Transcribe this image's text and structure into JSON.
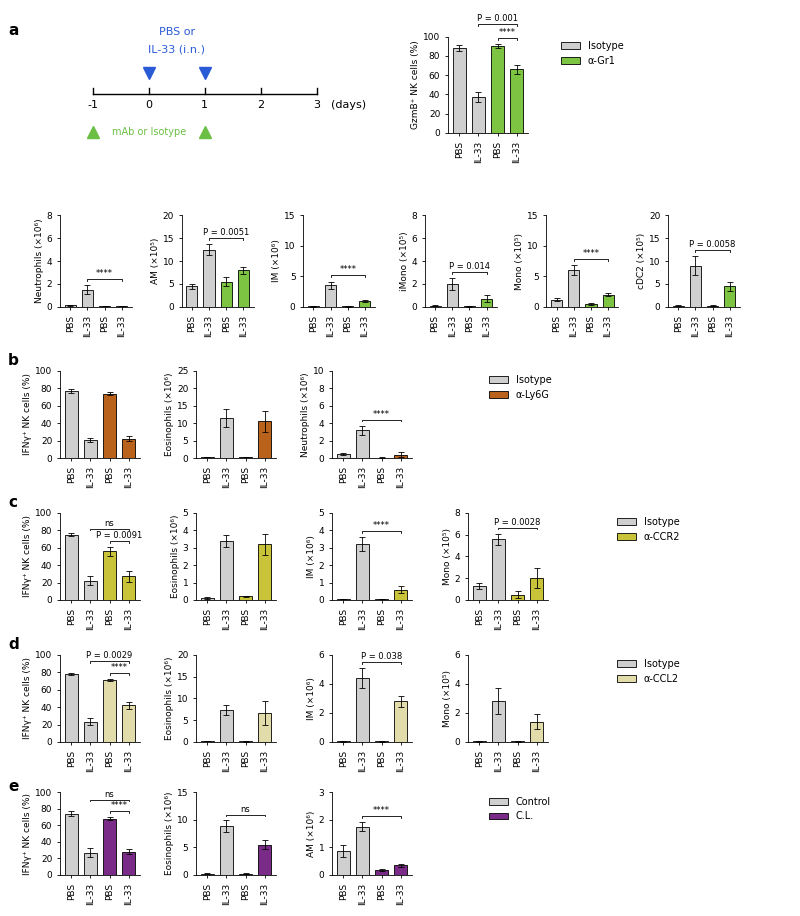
{
  "chart_data": [
    {
      "type": "bar",
      "panel": "a",
      "ylabel": "GzmB⁺ NK cells (%)",
      "categories": [
        "PBS",
        "IL-33",
        "PBS",
        "IL-33"
      ],
      "values": [
        88,
        37,
        90,
        66
      ],
      "errors": [
        3,
        5,
        2,
        5
      ],
      "colors": [
        "#cfcfcf",
        "#cfcfcf",
        "#7cc442",
        "#7cc442"
      ],
      "ylim": [
        0,
        100
      ],
      "yticks": [
        0,
        20,
        40,
        60,
        80,
        100
      ],
      "annotations": [
        {
          "text": "****",
          "between": [
            2,
            3
          ]
        },
        {
          "text": "P = 0.001",
          "between": [
            1,
            3
          ]
        }
      ]
    },
    {
      "type": "bar",
      "panel": "a",
      "ylabel": "Neutrophils (×10⁶)",
      "categories": [
        "PBS",
        "IL-33",
        "PBS",
        "IL-33"
      ],
      "values": [
        0.15,
        1.5,
        0.05,
        0.05
      ],
      "errors": [
        0.05,
        0.4,
        0.01,
        0.01
      ],
      "colors": [
        "#cfcfcf",
        "#cfcfcf",
        "#7cc442",
        "#7cc442"
      ],
      "ylim": [
        0,
        8
      ],
      "yticks": [
        0,
        2,
        4,
        6,
        8
      ],
      "annotations": [
        {
          "text": "****",
          "between": [
            1,
            3
          ]
        }
      ]
    },
    {
      "type": "bar",
      "panel": "a",
      "ylabel": "AM (×10⁵)",
      "categories": [
        "PBS",
        "IL-33",
        "PBS",
        "IL-33"
      ],
      "values": [
        4.5,
        12.5,
        5.5,
        8
      ],
      "errors": [
        0.5,
        1.2,
        1,
        0.8
      ],
      "colors": [
        "#cfcfcf",
        "#cfcfcf",
        "#7cc442",
        "#7cc442"
      ],
      "ylim": [
        0,
        20
      ],
      "yticks": [
        0,
        5,
        10,
        15,
        20
      ],
      "annotations": [
        {
          "text": "P = 0.0051",
          "between": [
            1,
            3
          ]
        }
      ]
    },
    {
      "type": "bar",
      "panel": "a",
      "ylabel": "IM (×10⁶)",
      "categories": [
        "PBS",
        "IL-33",
        "PBS",
        "IL-33"
      ],
      "values": [
        0.1,
        3.5,
        0.1,
        1
      ],
      "errors": [
        0.05,
        0.6,
        0.05,
        0.2
      ],
      "colors": [
        "#cfcfcf",
        "#cfcfcf",
        "#7cc442",
        "#7cc442"
      ],
      "ylim": [
        0,
        15
      ],
      "yticks": [
        0,
        5,
        10,
        15
      ],
      "annotations": [
        {
          "text": "****",
          "between": [
            1,
            3
          ]
        }
      ]
    },
    {
      "type": "bar",
      "panel": "a",
      "ylabel": "iMono (×10⁵)",
      "categories": [
        "PBS",
        "IL-33",
        "PBS",
        "IL-33"
      ],
      "values": [
        0.1,
        2,
        0.05,
        0.7
      ],
      "errors": [
        0.05,
        0.5,
        0.02,
        0.3
      ],
      "colors": [
        "#cfcfcf",
        "#cfcfcf",
        "#7cc442",
        "#7cc442"
      ],
      "ylim": [
        0,
        8
      ],
      "yticks": [
        0,
        2,
        4,
        6,
        8
      ],
      "annotations": [
        {
          "text": "P = 0.014",
          "between": [
            1,
            3
          ]
        }
      ]
    },
    {
      "type": "bar",
      "panel": "a",
      "ylabel": "Mono (×10⁵)",
      "categories": [
        "PBS",
        "IL-33",
        "PBS",
        "IL-33"
      ],
      "values": [
        1.2,
        6,
        0.5,
        2
      ],
      "errors": [
        0.3,
        0.8,
        0.2,
        0.3
      ],
      "colors": [
        "#cfcfcf",
        "#cfcfcf",
        "#7cc442",
        "#7cc442"
      ],
      "ylim": [
        0,
        15
      ],
      "yticks": [
        0,
        5,
        10,
        15
      ],
      "annotations": [
        {
          "text": "****",
          "between": [
            1,
            3
          ]
        }
      ]
    },
    {
      "type": "bar",
      "panel": "a",
      "ylabel": "cDC2 (×10⁵)",
      "categories": [
        "PBS",
        "IL-33",
        "PBS",
        "IL-33"
      ],
      "values": [
        0.2,
        9,
        0.2,
        4.5
      ],
      "errors": [
        0.1,
        2,
        0.1,
        1
      ],
      "colors": [
        "#cfcfcf",
        "#cfcfcf",
        "#7cc442",
        "#7cc442"
      ],
      "ylim": [
        0,
        20
      ],
      "yticks": [
        0,
        5,
        10,
        15,
        20
      ],
      "annotations": [
        {
          "text": "P = 0.0058",
          "between": [
            1,
            3
          ]
        }
      ]
    },
    {
      "type": "bar",
      "panel": "b",
      "ylabel": "IFNγ⁺ NK cells (%)",
      "categories": [
        "PBS",
        "IL-33",
        "PBS",
        "IL-33"
      ],
      "values": [
        77,
        21,
        74,
        22
      ],
      "errors": [
        2,
        2.5,
        1.5,
        3
      ],
      "colors": [
        "#cfcfcf",
        "#cfcfcf",
        "#b8621b",
        "#b8621b"
      ],
      "ylim": [
        0,
        100
      ],
      "yticks": [
        0,
        20,
        40,
        60,
        80,
        100
      ],
      "annotations": []
    },
    {
      "type": "bar",
      "panel": "b",
      "ylabel": "Eosinophils (×10⁶)",
      "categories": [
        "PBS",
        "IL-33",
        "PBS",
        "IL-33"
      ],
      "values": [
        0.3,
        11.5,
        0.3,
        10.5
      ],
      "errors": [
        0.1,
        2.5,
        0.1,
        3
      ],
      "colors": [
        "#cfcfcf",
        "#cfcfcf",
        "#b8621b",
        "#b8621b"
      ],
      "ylim": [
        0,
        25
      ],
      "yticks": [
        0,
        5,
        10,
        15,
        20,
        25
      ],
      "annotations": []
    },
    {
      "type": "bar",
      "panel": "b",
      "ylabel": "Neutrophils (×10⁶)",
      "categories": [
        "PBS",
        "IL-33",
        "PBS",
        "IL-33"
      ],
      "values": [
        0.5,
        3.2,
        0.05,
        0.4
      ],
      "errors": [
        0.1,
        0.5,
        0.02,
        0.3
      ],
      "colors": [
        "#cfcfcf",
        "#cfcfcf",
        "#b8621b",
        "#b8621b"
      ],
      "ylim": [
        0,
        10
      ],
      "yticks": [
        0,
        2,
        4,
        6,
        8,
        10
      ],
      "annotations": [
        {
          "text": "****",
          "between": [
            1,
            3
          ]
        }
      ]
    },
    {
      "type": "bar",
      "panel": "c",
      "ylabel": "IFNγ⁺ NK cells (%)",
      "categories": [
        "PBS",
        "IL-33",
        "PBS",
        "IL-33"
      ],
      "values": [
        75,
        22,
        56,
        27
      ],
      "errors": [
        2,
        5,
        5,
        6
      ],
      "colors": [
        "#cfcfcf",
        "#cfcfcf",
        "#c9c33a",
        "#c9c33a"
      ],
      "ylim": [
        0,
        100
      ],
      "yticks": [
        0,
        20,
        40,
        60,
        80,
        100
      ],
      "annotations": [
        {
          "text": "P = 0.0091",
          "between": [
            2,
            3
          ]
        },
        {
          "text": "ns",
          "between": [
            1,
            3
          ]
        }
      ]
    },
    {
      "type": "bar",
      "panel": "c",
      "ylabel": "Eosinophils (×10⁶)",
      "categories": [
        "PBS",
        "IL-33",
        "PBS",
        "IL-33"
      ],
      "values": [
        0.1,
        3.4,
        0.2,
        3.2
      ],
      "errors": [
        0.05,
        0.35,
        0.05,
        0.6
      ],
      "colors": [
        "#cfcfcf",
        "#cfcfcf",
        "#c9c33a",
        "#c9c33a"
      ],
      "ylim": [
        0,
        5
      ],
      "yticks": [
        0,
        1,
        2,
        3,
        4,
        5
      ],
      "annotations": []
    },
    {
      "type": "bar",
      "panel": "c",
      "ylabel": "IM (×10⁶)",
      "categories": [
        "PBS",
        "IL-33",
        "PBS",
        "IL-33"
      ],
      "values": [
        0.05,
        3.2,
        0.05,
        0.6
      ],
      "errors": [
        0.02,
        0.4,
        0.02,
        0.2
      ],
      "colors": [
        "#cfcfcf",
        "#cfcfcf",
        "#c9c33a",
        "#c9c33a"
      ],
      "ylim": [
        0,
        5
      ],
      "yticks": [
        0,
        1,
        2,
        3,
        4,
        5
      ],
      "annotations": [
        {
          "text": "****",
          "between": [
            1,
            3
          ]
        }
      ]
    },
    {
      "type": "bar",
      "panel": "c",
      "ylabel": "Mono (×10⁵)",
      "categories": [
        "PBS",
        "IL-33",
        "PBS",
        "IL-33"
      ],
      "values": [
        1.3,
        5.6,
        0.5,
        2
      ],
      "errors": [
        0.3,
        0.5,
        0.3,
        0.9
      ],
      "colors": [
        "#cfcfcf",
        "#cfcfcf",
        "#c9c33a",
        "#c9c33a"
      ],
      "ylim": [
        0,
        8
      ],
      "yticks": [
        0,
        2,
        4,
        6,
        8
      ],
      "annotations": [
        {
          "text": "P = 0.0028",
          "between": [
            1,
            3
          ]
        }
      ]
    },
    {
      "type": "bar",
      "panel": "d",
      "ylabel": "IFNγ⁺ NK cells (%)",
      "categories": [
        "PBS",
        "IL-33",
        "PBS",
        "IL-33"
      ],
      "values": [
        78,
        23,
        71,
        42
      ],
      "errors": [
        1,
        4,
        1,
        4
      ],
      "colors": [
        "#cfcfcf",
        "#cfcfcf",
        "#e2dcaa",
        "#e2dcaa"
      ],
      "ylim": [
        0,
        100
      ],
      "yticks": [
        0,
        20,
        40,
        60,
        80,
        100
      ],
      "annotations": [
        {
          "text": "****",
          "between": [
            2,
            3
          ]
        },
        {
          "text": "P = 0.0029",
          "between": [
            1,
            3
          ]
        }
      ]
    },
    {
      "type": "bar",
      "panel": "d",
      "ylabel": "Eosinophils (×10⁶)",
      "categories": [
        "PBS",
        "IL-33",
        "PBS",
        "IL-33"
      ],
      "values": [
        0.2,
        7.3,
        0.2,
        6.7
      ],
      "errors": [
        0.05,
        1.1,
        0.1,
        2.7
      ],
      "colors": [
        "#cfcfcf",
        "#cfcfcf",
        "#e2dcaa",
        "#e2dcaa"
      ],
      "ylim": [
        0,
        20
      ],
      "yticks": [
        0,
        5,
        10,
        15,
        20
      ],
      "annotations": []
    },
    {
      "type": "bar",
      "panel": "d",
      "ylabel": "IM (×10⁶)",
      "categories": [
        "PBS",
        "IL-33",
        "PBS",
        "IL-33"
      ],
      "values": [
        0.05,
        4.4,
        0.05,
        2.8
      ],
      "errors": [
        0.02,
        0.7,
        0.02,
        0.4
      ],
      "colors": [
        "#cfcfcf",
        "#cfcfcf",
        "#e2dcaa",
        "#e2dcaa"
      ],
      "ylim": [
        0,
        6
      ],
      "yticks": [
        0,
        2,
        4,
        6
      ],
      "annotations": [
        {
          "text": "P = 0.038",
          "between": [
            1,
            3
          ]
        }
      ]
    },
    {
      "type": "bar",
      "panel": "d",
      "ylabel": "Mono (×10⁵)",
      "categories": [
        "PBS",
        "IL-33",
        "PBS",
        "IL-33"
      ],
      "values": [
        0.05,
        2.8,
        0.05,
        1.4
      ],
      "errors": [
        0.02,
        0.9,
        0.02,
        0.5
      ],
      "colors": [
        "#cfcfcf",
        "#cfcfcf",
        "#e2dcaa",
        "#e2dcaa"
      ],
      "ylim": [
        0,
        6
      ],
      "yticks": [
        0,
        2,
        4,
        6
      ],
      "annotations": []
    },
    {
      "type": "bar",
      "panel": "e",
      "ylabel": "IFNγ⁺ NK cells (%)",
      "categories": [
        "PBS",
        "IL-33",
        "PBS",
        "IL-33"
      ],
      "values": [
        74,
        27,
        68,
        28
      ],
      "errors": [
        3,
        6,
        2,
        3
      ],
      "colors": [
        "#cfcfcf",
        "#cfcfcf",
        "#7a2b87",
        "#7a2b87"
      ],
      "ylim": [
        0,
        100
      ],
      "yticks": [
        0,
        20,
        40,
        60,
        80,
        100
      ],
      "annotations": [
        {
          "text": "****",
          "between": [
            2,
            3
          ]
        },
        {
          "text": "ns",
          "between": [
            1,
            3
          ]
        }
      ]
    },
    {
      "type": "bar",
      "panel": "e",
      "ylabel": "Eosinophils (×10⁶)",
      "categories": [
        "PBS",
        "IL-33",
        "PBS",
        "IL-33"
      ],
      "values": [
        0.2,
        8.8,
        0.2,
        5.5
      ],
      "errors": [
        0.05,
        1.1,
        0.1,
        0.9
      ],
      "colors": [
        "#cfcfcf",
        "#cfcfcf",
        "#7a2b87",
        "#7a2b87"
      ],
      "ylim": [
        0,
        15
      ],
      "yticks": [
        0,
        5,
        10,
        15
      ],
      "annotations": [
        {
          "text": "ns",
          "between": [
            1,
            3
          ]
        }
      ]
    },
    {
      "type": "bar",
      "panel": "e",
      "ylabel": "AM (×10⁶)",
      "categories": [
        "PBS",
        "IL-33",
        "PBS",
        "IL-33"
      ],
      "values": [
        0.85,
        1.75,
        0.18,
        0.35
      ],
      "errors": [
        0.22,
        0.17,
        0.03,
        0.06
      ],
      "colors": [
        "#cfcfcf",
        "#cfcfcf",
        "#7a2b87",
        "#7a2b87"
      ],
      "ylim": [
        0,
        3
      ],
      "yticks": [
        0,
        1,
        2,
        3
      ],
      "annotations": [
        {
          "text": "****",
          "between": [
            1,
            3
          ]
        }
      ]
    }
  ],
  "legends": [
    {
      "panel": "a",
      "legend": "upper left",
      "entries": [
        {
          "name": "Isotype",
          "color": "#cfcfcf"
        },
        {
          "name": "α-Gr1",
          "color": "#7cc442"
        }
      ]
    },
    {
      "panel": "b",
      "legend": "upper left",
      "entries": [
        {
          "name": "Isotype",
          "color": "#cfcfcf"
        },
        {
          "name": "α-Ly6G",
          "color": "#b8621b"
        }
      ]
    },
    {
      "panel": "c",
      "legend": "upper left",
      "entries": [
        {
          "name": "Isotype",
          "color": "#cfcfcf"
        },
        {
          "name": "α-CCR2",
          "color": "#c9c33a"
        }
      ]
    },
    {
      "panel": "d",
      "legend": "upper left",
      "entries": [
        {
          "name": "Isotype",
          "color": "#cfcfcf"
        },
        {
          "name": "α-CCL2",
          "color": "#e2dcaa"
        }
      ]
    },
    {
      "panel": "e",
      "legend": "upper left",
      "entries": [
        {
          "name": "Control",
          "color": "#cfcfcf"
        },
        {
          "name": "C.L.",
          "color": "#7a2b87"
        }
      ]
    }
  ],
  "panel_labels": [
    "a",
    "b",
    "c",
    "d",
    "e"
  ],
  "schematic": {
    "days": [
      -1,
      0,
      1,
      2,
      3
    ],
    "unit": "(days)",
    "top_label": [
      "PBS or",
      "IL-33 (i.n.)"
    ],
    "top_marks": [
      0,
      1
    ],
    "top_color": "#2a5bd7",
    "bottom_label": "mAb or Isotype",
    "bottom_marks": [
      -1,
      1
    ],
    "bottom_color": "#6cbf45"
  }
}
